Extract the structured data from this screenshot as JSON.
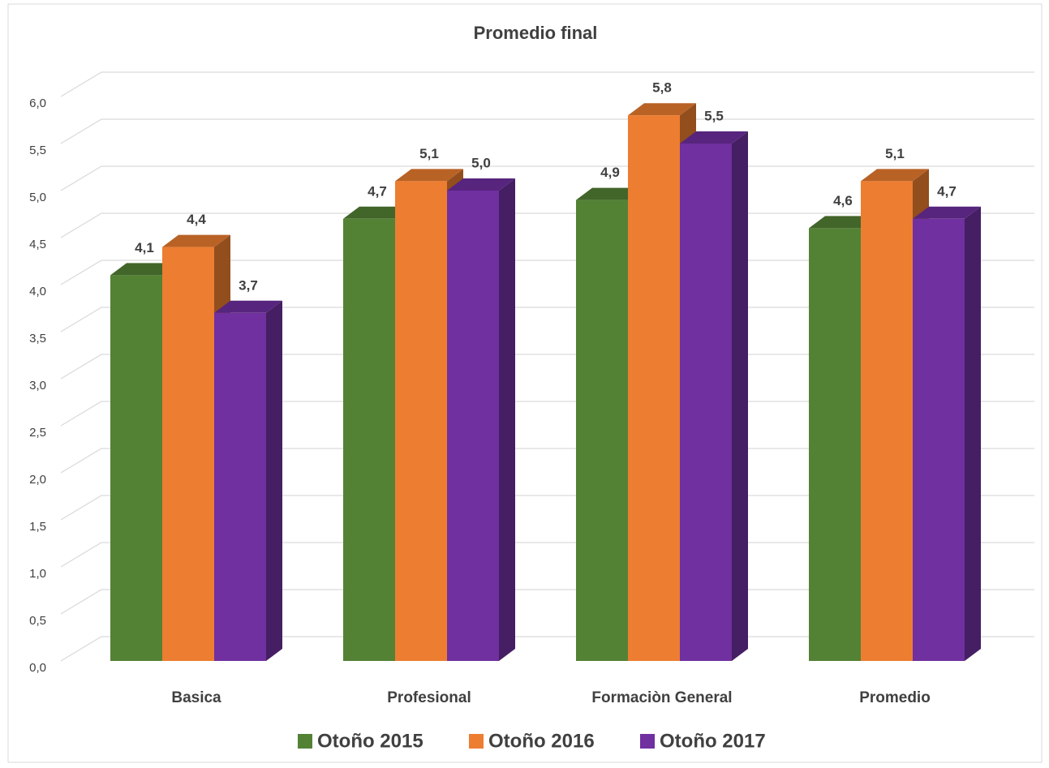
{
  "chart_data": {
    "type": "bar3d",
    "title": "Promedio final",
    "categories": [
      "Basica",
      "Profesional",
      "Formaciòn General",
      "Promedio"
    ],
    "series": [
      {
        "name": "Otoño 2015",
        "color": "#548235",
        "values": [
          4.1,
          4.7,
          4.9,
          4.6
        ],
        "value_labels": [
          "4,1",
          "4,7",
          "4,9",
          "4,6"
        ]
      },
      {
        "name": "Otoño 2016",
        "color": "#ed7d31",
        "values": [
          4.4,
          5.1,
          5.8,
          5.1
        ],
        "value_labels": [
          "4,4",
          "5,1",
          "5,8",
          "5,1"
        ]
      },
      {
        "name": "Otoño 2017",
        "color": "#7030a0",
        "values": [
          3.7,
          5.0,
          5.5,
          4.7
        ],
        "value_labels": [
          "3,7",
          "5,0",
          "5,5",
          "4,7"
        ]
      }
    ],
    "ylim": [
      0,
      6
    ],
    "yticks": [
      {
        "value": 0,
        "label": "0,0"
      },
      {
        "value": 0.5,
        "label": "0,5"
      },
      {
        "value": 1,
        "label": "1,0"
      },
      {
        "value": 1.5,
        "label": "1,5"
      },
      {
        "value": 2,
        "label": "2,0"
      },
      {
        "value": 2.5,
        "label": "2,5"
      },
      {
        "value": 3,
        "label": "3,0"
      },
      {
        "value": 3.5,
        "label": "3,5"
      },
      {
        "value": 4,
        "label": "4,0"
      },
      {
        "value": 4.5,
        "label": "4,5"
      },
      {
        "value": 5,
        "label": "5,0"
      },
      {
        "value": 5.5,
        "label": "5,5"
      },
      {
        "value": 6,
        "label": "6,0"
      }
    ],
    "grid": true,
    "legend": "bottom"
  }
}
